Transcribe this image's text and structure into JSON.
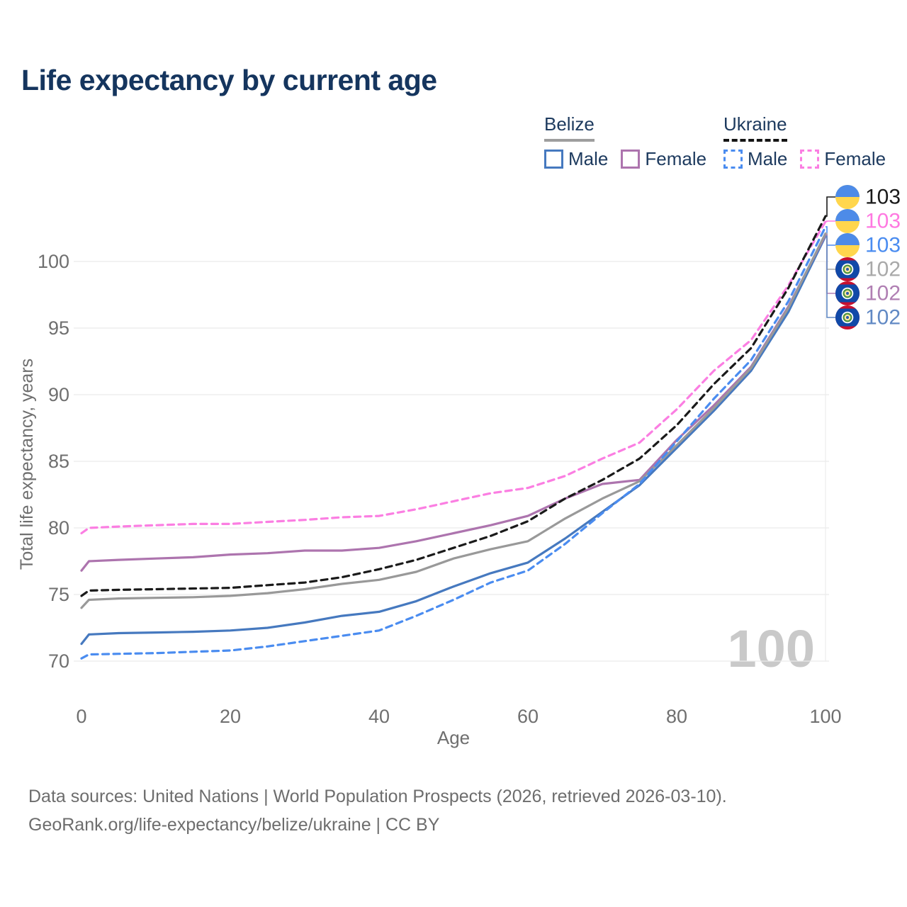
{
  "title": "Life expectancy by current age",
  "legend": {
    "groups": [
      {
        "label": "Belize",
        "line_style": "solid",
        "underline_color": "#9e9e9e",
        "items": [
          {
            "label": "Male",
            "color": "#4679bf"
          },
          {
            "label": "Female",
            "color": "#ad74ae"
          }
        ]
      },
      {
        "label": "Ukraine",
        "line_style": "dashed",
        "underline_color": "#141414",
        "items": [
          {
            "label": "Male",
            "color": "#4a8cf0"
          },
          {
            "label": "Female",
            "color": "#fb7ee2"
          }
        ]
      }
    ]
  },
  "chart_data": {
    "type": "line",
    "title": "Life expectancy by current age",
    "xlabel": "Age",
    "ylabel": "Total life expectancy, years",
    "x_ticks": [
      0,
      20,
      40,
      60,
      80,
      100
    ],
    "y_ticks": [
      70,
      75,
      80,
      85,
      90,
      95,
      100
    ],
    "xlim": [
      0,
      100
    ],
    "ylim": [
      69.5,
      104
    ],
    "grid": "horizontal",
    "legend_position": "top-right",
    "watermark": "100",
    "ages": [
      0,
      1,
      5,
      10,
      15,
      20,
      25,
      30,
      35,
      40,
      45,
      50,
      55,
      60,
      65,
      70,
      75,
      80,
      85,
      90,
      95,
      100
    ],
    "series": [
      {
        "name": "Belize Male",
        "country": "Belize",
        "sex": "Male",
        "color": "#4679bf",
        "dashed": false,
        "values": [
          71.3,
          72.0,
          72.1,
          72.15,
          72.2,
          72.3,
          72.5,
          72.9,
          73.4,
          73.7,
          74.5,
          75.6,
          76.6,
          77.4,
          79.2,
          81.2,
          83.2,
          86.0,
          88.8,
          91.8,
          96.2,
          101.9
        ],
        "end_label": {
          "text": "102",
          "color": "#6189c4",
          "flag": "belize"
        }
      },
      {
        "name": "Belize Female",
        "country": "Belize",
        "sex": "Female",
        "color": "#ad74ae",
        "dashed": false,
        "values": [
          76.8,
          77.5,
          77.6,
          77.7,
          77.8,
          78.0,
          78.1,
          78.3,
          78.3,
          78.5,
          79.0,
          79.6,
          80.2,
          80.9,
          82.2,
          83.3,
          83.6,
          86.6,
          89.2,
          92.1,
          96.6,
          102.0
        ],
        "end_label": {
          "text": "102",
          "color": "#b07fb3",
          "flag": "belize"
        }
      },
      {
        "name": "Belize Total",
        "country": "Belize",
        "sex": "Total",
        "color": "#999999",
        "dashed": false,
        "values": [
          74.0,
          74.6,
          74.7,
          74.75,
          74.8,
          74.9,
          75.1,
          75.4,
          75.8,
          76.1,
          76.7,
          77.7,
          78.4,
          79.0,
          80.7,
          82.2,
          83.5,
          86.2,
          89.0,
          92.0,
          96.5,
          102.1
        ],
        "end_label": {
          "text": "102",
          "color": "#a9a9a9",
          "flag": "belize"
        }
      },
      {
        "name": "Ukraine Male",
        "country": "Ukraine",
        "sex": "Male",
        "color": "#4a8cf0",
        "dashed": true,
        "values": [
          70.2,
          70.5,
          70.55,
          70.6,
          70.7,
          70.8,
          71.1,
          71.5,
          71.9,
          72.3,
          73.4,
          74.6,
          75.9,
          76.8,
          78.8,
          81.1,
          83.3,
          86.5,
          89.7,
          92.6,
          97.0,
          102.6
        ],
        "end_label": {
          "text": "103",
          "color": "#4a8cf0",
          "flag": "ukraine"
        }
      },
      {
        "name": "Ukraine Female",
        "country": "Ukraine",
        "sex": "Female",
        "color": "#fb7ee2",
        "dashed": true,
        "values": [
          79.6,
          80.0,
          80.1,
          80.2,
          80.3,
          80.3,
          80.45,
          80.6,
          80.8,
          80.9,
          81.4,
          82.0,
          82.6,
          83.0,
          83.9,
          85.2,
          86.4,
          88.9,
          91.8,
          94.1,
          98.2,
          103.0
        ],
        "end_label": {
          "text": "103",
          "color": "#ff79e1",
          "flag": "ukraine"
        }
      },
      {
        "name": "Ukraine Total",
        "country": "Ukraine",
        "sex": "Total",
        "color": "#1a1a1a",
        "dashed": true,
        "values": [
          74.9,
          75.3,
          75.35,
          75.4,
          75.45,
          75.5,
          75.7,
          75.9,
          76.3,
          76.9,
          77.6,
          78.5,
          79.4,
          80.5,
          82.2,
          83.6,
          85.2,
          87.7,
          90.8,
          93.5,
          98.0,
          103.4
        ],
        "end_label": {
          "text": "103",
          "color": "#1a1a1a",
          "flag": "ukraine"
        }
      }
    ],
    "flag_colors": {
      "ukraine_blue": "#4d8be8",
      "ukraine_yellow": "#ffd64d",
      "belize_blue": "#1049a8",
      "belize_red": "#c8102e",
      "belize_white": "#ffffff",
      "belize_green": "#4f9440"
    },
    "axis_color": "#6f6f6f",
    "grid_color": "#e9e9e9",
    "watermark_color": "#c9c9c9"
  },
  "footer": {
    "line1": "Data sources: United Nations | World Population Prospects (2026, retrieved 2026-03-10).",
    "line2": "GeoRank.org/life-expectancy/belize/ukraine | CC BY"
  }
}
